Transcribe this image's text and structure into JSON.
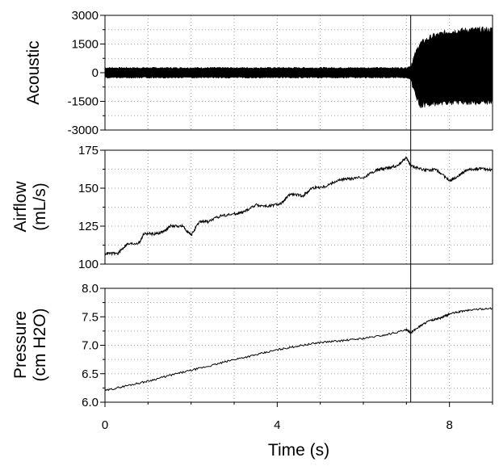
{
  "chart_data": [
    {
      "type": "line",
      "title": "",
      "xlabel": "",
      "ylabel": "Acoustic",
      "xlim": [
        0,
        9
      ],
      "ylim": [
        -3000,
        3000
      ],
      "yticks": [
        "3000",
        "1500",
        "0",
        "-1500",
        "-3000"
      ],
      "grid": true,
      "series": [
        {
          "x": [
            0,
            7.0,
            7.1,
            7.3,
            7.6,
            8.0,
            8.5,
            9.0
          ],
          "y_upper": [
            250,
            250,
            350,
            1500,
            1900,
            2150,
            2250,
            2250
          ],
          "y_lower": [
            -250,
            -250,
            -350,
            -1700,
            -1650,
            -1550,
            -1550,
            -1500
          ]
        }
      ],
      "marker_line_x": 7.1
    },
    {
      "type": "line",
      "title": "",
      "xlabel": "",
      "ylabel_lines": [
        "Airflow",
        "(mL/s)"
      ],
      "xlim": [
        0,
        9
      ],
      "ylim": [
        100,
        175
      ],
      "yticks": [
        "175",
        "150",
        "125",
        "100"
      ],
      "grid": true,
      "series": [
        {
          "x": [
            0,
            0.3,
            0.5,
            0.8,
            0.9,
            1.2,
            1.4,
            1.5,
            1.8,
            2.0,
            2.2,
            2.4,
            2.7,
            3.0,
            3.2,
            3.5,
            3.8,
            4.1,
            4.3,
            4.6,
            4.8,
            5.1,
            5.4,
            5.6,
            6.0,
            6.3,
            6.5,
            6.8,
            7.0,
            7.1,
            7.4,
            7.7,
            8.0,
            8.2,
            8.4,
            8.7,
            9.0
          ],
          "y": [
            107,
            107,
            113,
            114,
            120,
            120,
            122,
            125,
            125,
            119,
            128,
            128,
            132,
            133,
            134,
            139,
            138,
            140,
            146,
            145,
            150,
            151,
            155,
            156,
            157,
            162,
            163,
            165,
            170,
            165,
            162,
            162,
            155,
            158,
            162,
            163,
            162
          ]
        }
      ],
      "marker_line_x": 7.1
    },
    {
      "type": "line",
      "title": "",
      "xlabel": "Time (s)",
      "ylabel_lines": [
        "Pressure",
        "(cm H2O)"
      ],
      "xlim": [
        0,
        9
      ],
      "ylim": [
        6.0,
        8.0
      ],
      "xticks": [
        "0",
        "4",
        "8"
      ],
      "yticks": [
        "8.0",
        "7.5",
        "7.0",
        "6.5",
        "6.0"
      ],
      "grid": true,
      "series": [
        {
          "x": [
            0,
            0.5,
            1.0,
            1.5,
            2.0,
            2.5,
            3.0,
            3.5,
            4.0,
            4.5,
            5.0,
            5.5,
            6.0,
            6.5,
            7.0,
            7.1,
            7.3,
            7.5,
            7.8,
            8.0,
            8.3,
            8.6,
            9.0
          ],
          "y": [
            6.2,
            6.29,
            6.37,
            6.47,
            6.56,
            6.65,
            6.75,
            6.83,
            6.92,
            6.99,
            7.05,
            7.08,
            7.12,
            7.18,
            7.27,
            7.22,
            7.33,
            7.42,
            7.48,
            7.55,
            7.6,
            7.63,
            7.65
          ]
        }
      ],
      "marker_line_x": 7.1
    }
  ]
}
